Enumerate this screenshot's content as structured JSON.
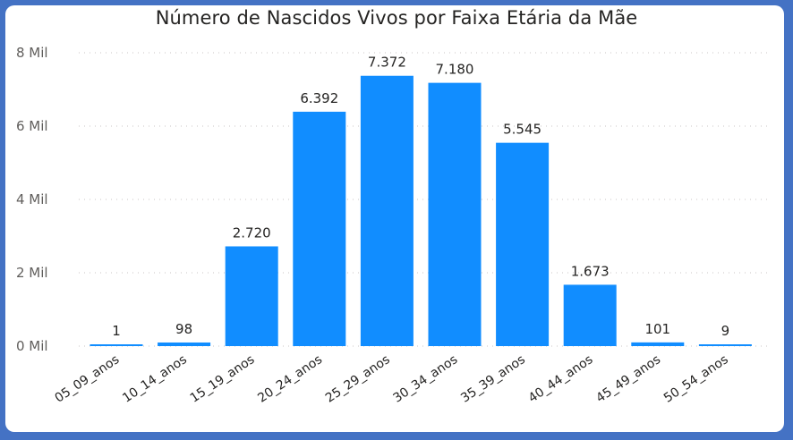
{
  "chart_data": {
    "type": "bar",
    "title": "Número de Nascidos Vivos por Faixa Etária da Mãe",
    "xlabel": "",
    "ylabel": "",
    "categories": [
      "05_09_anos",
      "10_14_anos",
      "15_19_anos",
      "20_24_anos",
      "25_29_anos",
      "30_34_anos",
      "35_39_anos",
      "40_44_anos",
      "45_49_anos",
      "50_54_anos"
    ],
    "values": [
      1,
      98,
      2720,
      6392,
      7372,
      7180,
      5545,
      1673,
      101,
      9
    ],
    "data_labels": [
      "1",
      "98",
      "2.720",
      "6.392",
      "7.372",
      "7.180",
      "5.545",
      "1.673",
      "101",
      "9"
    ],
    "ylim": [
      0,
      8000
    ],
    "y_ticks": [
      0,
      2000,
      4000,
      6000,
      8000
    ],
    "y_tick_labels": [
      "0 Mil",
      "2 Mil",
      "4 Mil",
      "6 Mil",
      "8 Mil"
    ],
    "grid": true,
    "legend": "none",
    "bar_color": "#118DFF",
    "frame_color": "#4472C4"
  }
}
